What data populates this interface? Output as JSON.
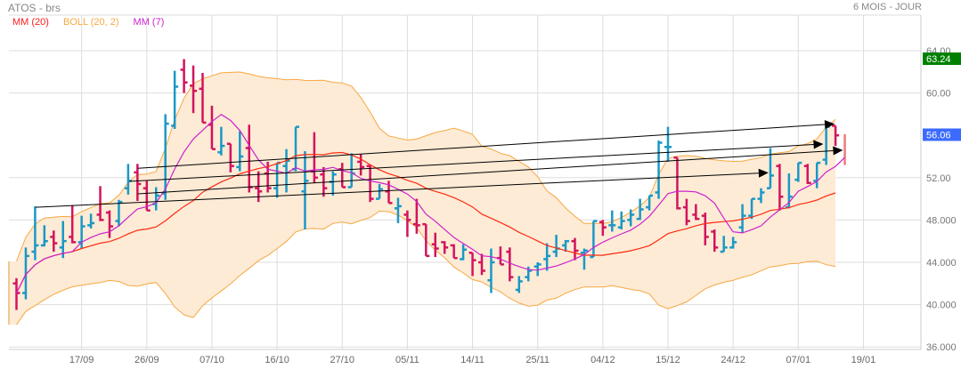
{
  "header": {
    "title": "ATOS - brs",
    "period": "6 MOIS - JOUR"
  },
  "legend": [
    {
      "label": "MM (20)",
      "color": "#ff1a1a"
    },
    {
      "label": "BOLL (20, 2)",
      "color": "#f7a840"
    },
    {
      "label": "MM (7)",
      "color": "#cc22cc"
    }
  ],
  "chart_data": {
    "type": "ohlc",
    "title": "ATOS - brs",
    "ylim": [
      36,
      64
    ],
    "yticks": [
      {
        "value": 64,
        "label": "64.00"
      },
      {
        "value": 60,
        "label": "60.00"
      },
      {
        "value": 52,
        "label": "52.00"
      },
      {
        "value": 48,
        "label": "48.000"
      },
      {
        "value": 44,
        "label": "44.000"
      },
      {
        "value": 40,
        "label": "40.000"
      },
      {
        "value": 36,
        "label": "36.000"
      }
    ],
    "xticks": [
      {
        "index": 7,
        "label": "17/09"
      },
      {
        "index": 14,
        "label": "26/09"
      },
      {
        "index": 21,
        "label": "07/10"
      },
      {
        "index": 28,
        "label": "16/10"
      },
      {
        "index": 35,
        "label": "27/10"
      },
      {
        "index": 42,
        "label": "05/11"
      },
      {
        "index": 49,
        "label": "14/11"
      },
      {
        "index": 56,
        "label": "25/11"
      },
      {
        "index": 63,
        "label": "04/12"
      },
      {
        "index": 70,
        "label": "15/12"
      },
      {
        "index": 77,
        "label": "24/12"
      },
      {
        "index": 84,
        "label": "07/01"
      },
      {
        "index": 91,
        "label": "19/01"
      }
    ],
    "grid": true,
    "colors": {
      "up": "#1b98c6",
      "down": "#d2145e",
      "current": "#f07a7a",
      "band_fill": "#fdebd6",
      "band_line": "#f7a840",
      "mm20": "#ff2a10",
      "mm7": "#cc22cc",
      "trend": "#000000"
    },
    "ohlc": [
      [
        42.0,
        42.5,
        39.5,
        41.1
      ],
      [
        41.1,
        45.4,
        40.5,
        44.6
      ],
      [
        45.0,
        49.3,
        44.2,
        45.6
      ],
      [
        45.6,
        47.5,
        45.5,
        46.0
      ],
      [
        46.4,
        47.0,
        45.0,
        45.8
      ],
      [
        45.4,
        47.9,
        44.4,
        46.0
      ],
      [
        46.4,
        49.4,
        45.8,
        45.9
      ],
      [
        45.9,
        48.4,
        45.3,
        47.4
      ],
      [
        47.5,
        48.6,
        47.2,
        47.7
      ],
      [
        48.5,
        51.2,
        47.9,
        48.0
      ],
      [
        48.7,
        48.9,
        46.3,
        47.4
      ],
      [
        47.9,
        49.9,
        47.4,
        49.7
      ],
      [
        51.0,
        53.3,
        50.4,
        51.7
      ],
      [
        52.5,
        53.3,
        49.8,
        51.4
      ],
      [
        51.0,
        51.7,
        48.9,
        48.9
      ],
      [
        49.5,
        51.1,
        48.9,
        50.3
      ],
      [
        50.5,
        58.0,
        49.9,
        57.1
      ],
      [
        56.9,
        62.1,
        56.6,
        60.6
      ],
      [
        62.2,
        63.2,
        60.0,
        61.0
      ],
      [
        60.7,
        62.6,
        58.1,
        60.2
      ],
      [
        60.4,
        61.9,
        57.2,
        57.2
      ],
      [
        57.0,
        58.8,
        54.7,
        54.7
      ],
      [
        54.4,
        56.8,
        54.1,
        55.0
      ],
      [
        55.2,
        55.2,
        52.5,
        53.1
      ],
      [
        53.0,
        56.4,
        52.6,
        54.0
      ],
      [
        54.8,
        57.0,
        50.6,
        51.1
      ],
      [
        51.0,
        52.6,
        49.7,
        50.7
      ],
      [
        52.4,
        53.5,
        50.6,
        51.0
      ],
      [
        51.0,
        53.4,
        50.1,
        53.4
      ],
      [
        53.1,
        54.7,
        50.6,
        53.6
      ],
      [
        52.8,
        56.8,
        52.6,
        56.8
      ],
      [
        50.7,
        54.5,
        47.1,
        51.7
      ],
      [
        52.6,
        56.3,
        51.5,
        52.0
      ],
      [
        52.3,
        53.0,
        50.2,
        51.0
      ],
      [
        51.6,
        52.6,
        50.3,
        52.3
      ],
      [
        52.8,
        53.4,
        51.1,
        51.1
      ],
      [
        51.1,
        54.3,
        51.1,
        52.4
      ],
      [
        53.5,
        54.2,
        52.2,
        53.0
      ],
      [
        53.1,
        53.2,
        49.7,
        50.0
      ],
      [
        50.0,
        51.4,
        50.0,
        50.9
      ],
      [
        50.7,
        51.7,
        49.6,
        49.6
      ],
      [
        49.1,
        50.1,
        47.7,
        49.3
      ],
      [
        48.5,
        48.9,
        46.4,
        48.0
      ],
      [
        47.6,
        50.0,
        46.7,
        47.5
      ],
      [
        47.6,
        47.6,
        44.6,
        44.6
      ],
      [
        45.7,
        46.8,
        44.5,
        45.3
      ],
      [
        45.9,
        46.0,
        44.8,
        45.4
      ],
      [
        45.6,
        45.7,
        44.4,
        44.4
      ],
      [
        44.3,
        45.7,
        44.2,
        45.2
      ],
      [
        44.9,
        44.9,
        42.7,
        44.2
      ],
      [
        44.0,
        44.8,
        42.8,
        43.2
      ],
      [
        42.3,
        45.3,
        41.1,
        44.0
      ],
      [
        44.4,
        45.5,
        43.8,
        43.8
      ],
      [
        45.0,
        45.4,
        42.2,
        42.6
      ],
      [
        41.4,
        42.7,
        41.1,
        42.2
      ],
      [
        42.6,
        43.6,
        42.2,
        43.2
      ],
      [
        43.6,
        44.0,
        42.7,
        43.8
      ],
      [
        44.3,
        45.8,
        43.2,
        44.6
      ],
      [
        45.0,
        46.6,
        44.5,
        45.3
      ],
      [
        45.6,
        46.1,
        45.0,
        46.0
      ],
      [
        46.0,
        46.3,
        44.2,
        45.1
      ],
      [
        44.9,
        45.3,
        43.3,
        45.1
      ],
      [
        44.5,
        47.9,
        44.5,
        47.9
      ],
      [
        47.8,
        48.0,
        46.5,
        47.3
      ],
      [
        47.5,
        48.9,
        46.9,
        47.5
      ],
      [
        47.3,
        48.8,
        47.1,
        47.9
      ],
      [
        48.0,
        49.0,
        47.4,
        48.5
      ],
      [
        48.1,
        50.0,
        48.0,
        49.0
      ],
      [
        49.2,
        50.3,
        48.9,
        50.3
      ],
      [
        50.6,
        55.5,
        50.0,
        55.3
      ],
      [
        54.9,
        56.8,
        53.5,
        54.9
      ],
      [
        53.9,
        53.9,
        49.0,
        49.1
      ],
      [
        49.2,
        50.0,
        47.5,
        47.9
      ],
      [
        48.5,
        49.5,
        48.0,
        48.1
      ],
      [
        48.4,
        48.7,
        45.6,
        46.4
      ],
      [
        46.9,
        47.1,
        45.0,
        45.4
      ],
      [
        45.0,
        46.5,
        45.0,
        45.4
      ],
      [
        45.4,
        46.4,
        45.3,
        45.9
      ],
      [
        47.3,
        49.5,
        46.8,
        48.4
      ],
      [
        48.4,
        50.0,
        48.1,
        50.0
      ],
      [
        50.0,
        51.0,
        49.6,
        50.6
      ],
      [
        51.0,
        54.8,
        51.0,
        52.2
      ],
      [
        53.1,
        53.3,
        48.9,
        50.2
      ],
      [
        49.2,
        52.4,
        49.1,
        50.2
      ],
      [
        51.8,
        53.4,
        51.6,
        53.4
      ],
      [
        53.1,
        53.3,
        51.4,
        51.5
      ],
      [
        51.7,
        53.4,
        51.0,
        53.4
      ],
      [
        53.7,
        56.8,
        53.2,
        56.8
      ],
      [
        56.9,
        56.9,
        55.0,
        56.0
      ],
      [
        56.1,
        56.1,
        53.2,
        56.06
      ]
    ],
    "current_bar_index": 89,
    "trend_lines": [
      {
        "from": [
          13.06,
          52.89
        ],
        "to": [
          87.9,
          57.08
        ]
      },
      {
        "from": [
          12.1,
          51.65
        ],
        "to": [
          86.7,
          55.18
        ]
      },
      {
        "from": [
          13.06,
          50.47
        ],
        "to": [
          88.8,
          54.6
        ]
      },
      {
        "from": [
          2.06,
          49.2
        ],
        "to": [
          80.8,
          52.47
        ]
      }
    ],
    "indicators": {
      "mm_long": 20,
      "boll_period": 20,
      "boll_k": 2,
      "mm_short": 7
    },
    "price_badges": [
      {
        "value": 63.24,
        "label": "63.24",
        "color": "#008000"
      },
      {
        "value": 56.06,
        "label": "56.06",
        "color": "#3b6bff"
      }
    ]
  }
}
